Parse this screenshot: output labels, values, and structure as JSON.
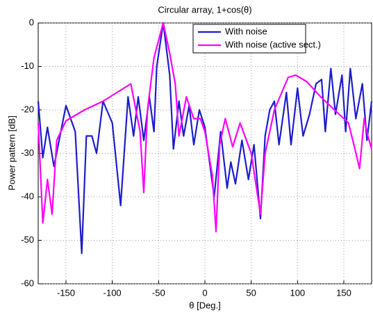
{
  "chart_data": {
    "type": "line",
    "title": "Circular array, 1+cos(θ)",
    "xlabel": "θ   [Deg.]",
    "ylabel": "Power pattern  [dB]",
    "xlim": [
      -180,
      180
    ],
    "ylim": [
      -60,
      0
    ],
    "xticks": [
      -150,
      -100,
      -50,
      0,
      50,
      100,
      150
    ],
    "yticks": [
      -60,
      -50,
      -40,
      -30,
      -20,
      -10,
      0
    ],
    "grid": true,
    "legend": "upper right",
    "series": [
      {
        "name": "With noise",
        "color": "#1c1ccc",
        "x": [
          -180,
          -175,
          -170,
          -163,
          -150,
          -140,
          -133,
          -128,
          -122,
          -117,
          -110,
          -100,
          -91,
          -83,
          -77,
          -72,
          -66,
          -60,
          -55,
          -52,
          -45,
          -38,
          -34,
          -28,
          -23,
          -17,
          -12,
          -6,
          0,
          10,
          17,
          24,
          28,
          33,
          40,
          47,
          53,
          60,
          65,
          70,
          75,
          80,
          88,
          93,
          100,
          106,
          113,
          120,
          126,
          130,
          136,
          141,
          148,
          152,
          157,
          163,
          170,
          175,
          180
        ],
        "values": [
          -18,
          -31,
          -24,
          -33,
          -19,
          -25,
          -53,
          -26,
          -26,
          -30,
          -18,
          -23,
          -42,
          -17,
          -26,
          -17,
          -27,
          -17,
          -25,
          -10,
          0,
          -12,
          -29,
          -18,
          -26,
          -19,
          -28,
          -20,
          -24,
          -40,
          -25,
          -38,
          -32,
          -37,
          -27,
          -36,
          -28,
          -45,
          -26,
          -20,
          -18,
          -28,
          -16,
          -28,
          -15,
          -26,
          -21,
          -14,
          -13,
          -25,
          -10.5,
          -21,
          -12,
          -25,
          -10.5,
          -22,
          -14,
          -27,
          -18
        ]
      },
      {
        "name": "With noise (active sect.)",
        "color": "#ff00ff",
        "x": [
          -180,
          -175,
          -170,
          -165,
          -160,
          -150,
          -130,
          -110,
          -95,
          -80,
          -70,
          -66,
          -62,
          -55,
          -45,
          -38,
          -32,
          -28,
          -20,
          -12,
          -5,
          0,
          8,
          12,
          16,
          22,
          30,
          38,
          50,
          60,
          65,
          75,
          90,
          98,
          110,
          125,
          140,
          155,
          162,
          167,
          172,
          176,
          180
        ],
        "values": [
          -23,
          -46,
          -36,
          -44,
          -27,
          -22.5,
          -20,
          -18,
          -16,
          -14,
          -25,
          -39,
          -20,
          -8,
          0,
          -7,
          -14,
          -26,
          -17,
          -22,
          -22,
          -25,
          -35,
          -48,
          -28,
          -22,
          -28.5,
          -23,
          -30,
          -44,
          -30,
          -20,
          -12.5,
          -12,
          -13.5,
          -17,
          -20,
          -23,
          -29,
          -33.5,
          -22,
          -26,
          -29
        ]
      }
    ]
  }
}
